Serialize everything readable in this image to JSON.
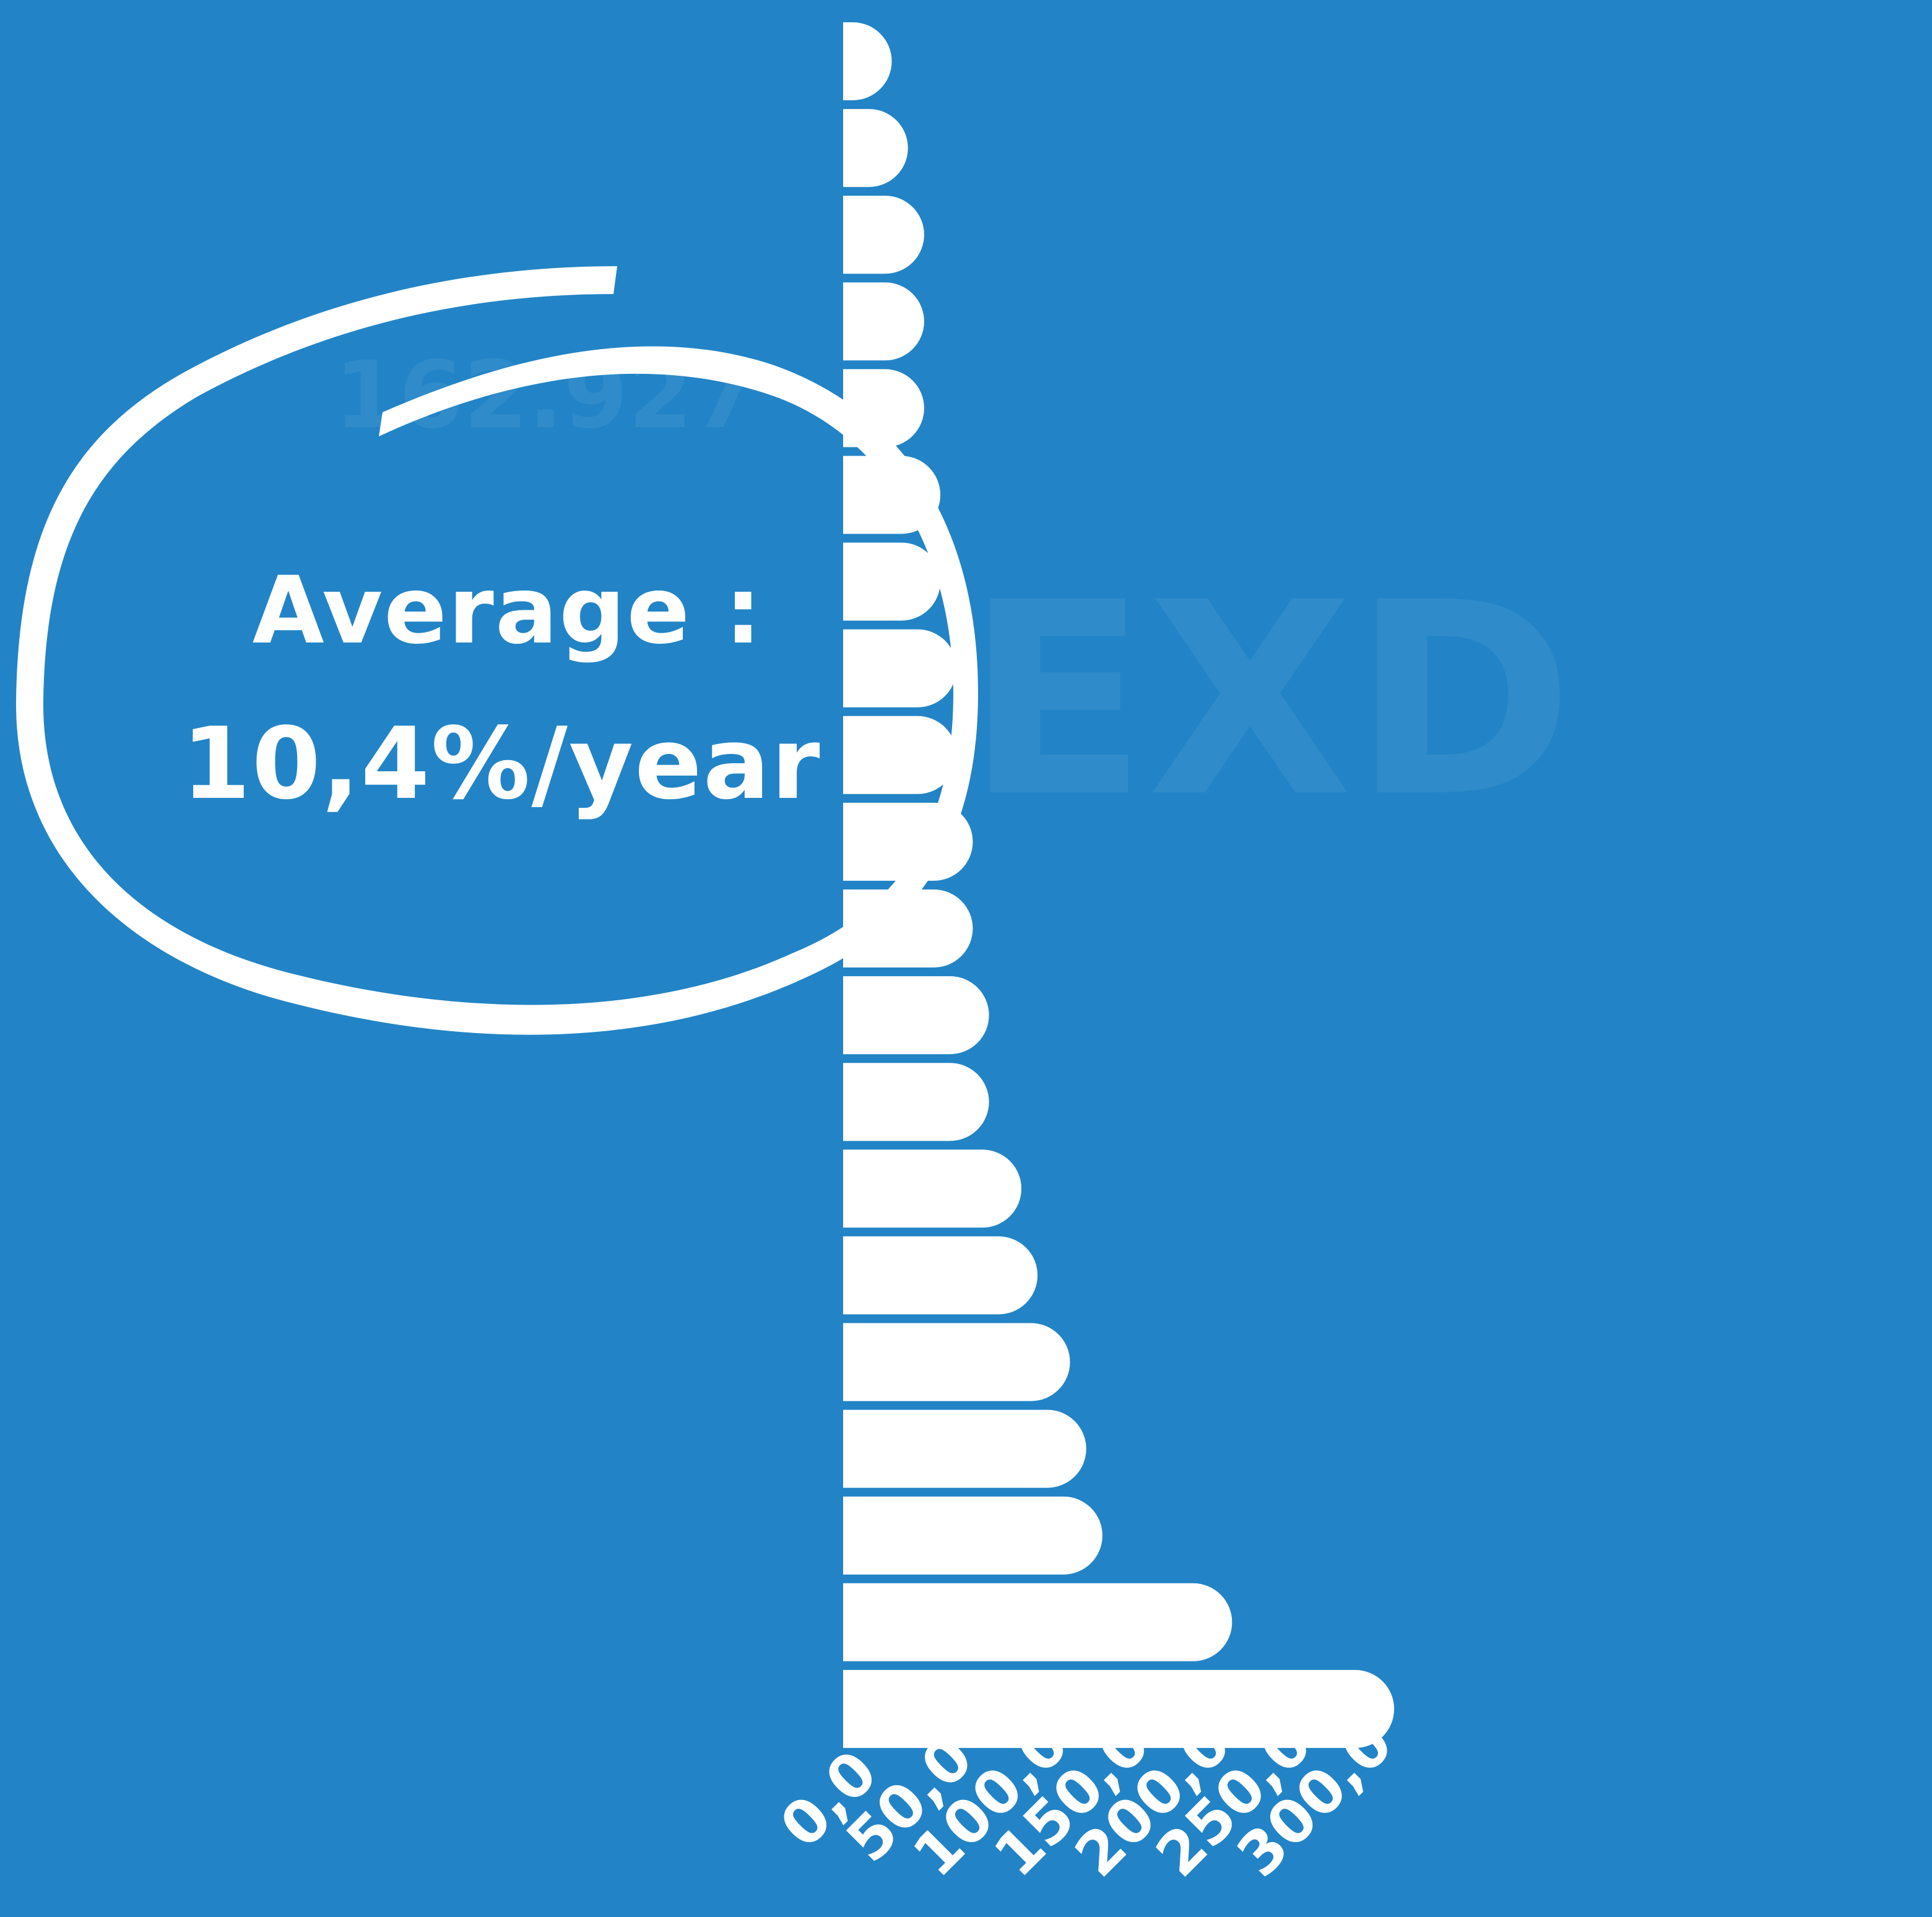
{
  "annotation": {
    "line1": "Average :",
    "line2": "10,4%/year"
  },
  "watermark": {
    "number_text": "162.927",
    "logo_text": "EXD"
  },
  "chart_data": {
    "type": "bar",
    "orientation": "horizontal",
    "title": "",
    "xlabel": "",
    "ylabel": "",
    "xlim": [
      0,
      330
    ],
    "x_ticks": [
      0,
      50,
      100,
      150,
      200,
      250,
      300
    ],
    "x_tick_labels": [
      "0,0",
      "50,0",
      "100,0",
      "150,0",
      "200,0",
      "250,0",
      "300,0"
    ],
    "grid": false,
    "legend": "none",
    "bar_color": "#FFFFFF",
    "background_color": "#2284C6",
    "values": [
      30,
      40,
      50,
      50,
      50,
      60,
      60,
      70,
      70,
      80,
      80,
      90,
      90,
      110,
      120,
      140,
      150,
      160,
      240,
      340
    ]
  }
}
